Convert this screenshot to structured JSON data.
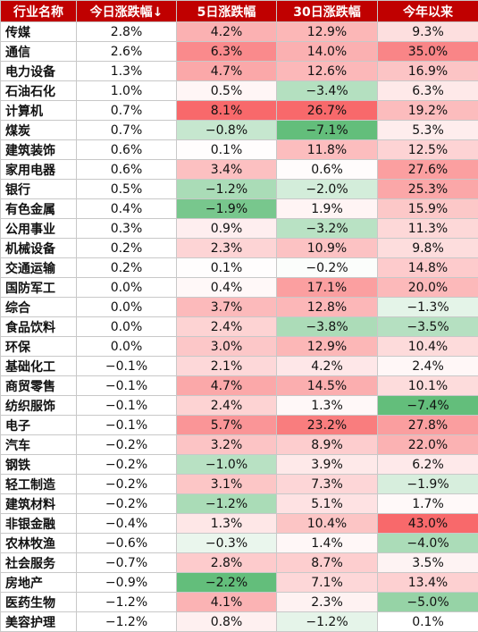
{
  "chart_data": {
    "type": "table",
    "columns": [
      "行业名称",
      "今日涨跌幅↓",
      "5日涨跌幅",
      "30日涨跌幅",
      "今年以来"
    ],
    "rows": [
      {
        "name": "传媒",
        "values": [
          "2.8%",
          "4.2%",
          "12.9%",
          "9.3%"
        ]
      },
      {
        "name": "通信",
        "values": [
          "2.6%",
          "6.3%",
          "14.0%",
          "35.0%"
        ]
      },
      {
        "name": "电力设备",
        "values": [
          "1.3%",
          "4.7%",
          "12.6%",
          "16.9%"
        ]
      },
      {
        "name": "石油石化",
        "values": [
          "1.0%",
          "0.5%",
          "−3.4%",
          "6.3%"
        ]
      },
      {
        "name": "计算机",
        "values": [
          "0.7%",
          "8.1%",
          "26.7%",
          "19.2%"
        ]
      },
      {
        "name": "煤炭",
        "values": [
          "0.7%",
          "−0.8%",
          "−7.1%",
          "5.3%"
        ]
      },
      {
        "name": "建筑装饰",
        "values": [
          "0.6%",
          "0.1%",
          "11.8%",
          "12.5%"
        ]
      },
      {
        "name": "家用电器",
        "values": [
          "0.6%",
          "3.4%",
          "0.6%",
          "27.6%"
        ]
      },
      {
        "name": "银行",
        "values": [
          "0.5%",
          "−1.2%",
          "−2.0%",
          "25.3%"
        ]
      },
      {
        "name": "有色金属",
        "values": [
          "0.4%",
          "−1.9%",
          "1.9%",
          "15.9%"
        ]
      },
      {
        "name": "公用事业",
        "values": [
          "0.3%",
          "0.9%",
          "−3.2%",
          "11.3%"
        ]
      },
      {
        "name": "机械设备",
        "values": [
          "0.2%",
          "2.3%",
          "10.9%",
          "9.8%"
        ]
      },
      {
        "name": "交通运输",
        "values": [
          "0.2%",
          "0.1%",
          "−0.2%",
          "14.8%"
        ]
      },
      {
        "name": "国防军工",
        "values": [
          "0.0%",
          "0.4%",
          "17.1%",
          "20.0%"
        ]
      },
      {
        "name": "综合",
        "values": [
          "0.0%",
          "3.7%",
          "12.8%",
          "−1.3%"
        ]
      },
      {
        "name": "食品饮料",
        "values": [
          "0.0%",
          "2.4%",
          "−3.8%",
          "−3.5%"
        ]
      },
      {
        "name": "环保",
        "values": [
          "0.0%",
          "3.0%",
          "12.9%",
          "10.4%"
        ]
      },
      {
        "name": "基础化工",
        "values": [
          "−0.1%",
          "2.1%",
          "4.2%",
          "2.4%"
        ]
      },
      {
        "name": "商贸零售",
        "values": [
          "−0.1%",
          "4.7%",
          "14.5%",
          "10.1%"
        ]
      },
      {
        "name": "纺织服饰",
        "values": [
          "−0.1%",
          "2.4%",
          "1.3%",
          "−7.4%"
        ]
      },
      {
        "name": "电子",
        "values": [
          "−0.1%",
          "5.7%",
          "23.2%",
          "27.8%"
        ]
      },
      {
        "name": "汽车",
        "values": [
          "−0.2%",
          "3.2%",
          "8.9%",
          "22.0%"
        ]
      },
      {
        "name": "钢铁",
        "values": [
          "−0.2%",
          "−1.0%",
          "3.9%",
          "6.2%"
        ]
      },
      {
        "name": "轻工制造",
        "values": [
          "−0.2%",
          "3.1%",
          "7.3%",
          "−1.9%"
        ]
      },
      {
        "name": "建筑材料",
        "values": [
          "−0.2%",
          "−1.2%",
          "5.1%",
          "1.7%"
        ]
      },
      {
        "name": "非银金融",
        "values": [
          "−0.4%",
          "1.3%",
          "10.4%",
          "43.0%"
        ]
      },
      {
        "name": "农林牧渔",
        "values": [
          "−0.6%",
          "−0.3%",
          "1.4%",
          "−4.0%"
        ]
      },
      {
        "name": "社会服务",
        "values": [
          "−0.7%",
          "2.8%",
          "8.7%",
          "3.5%"
        ]
      },
      {
        "name": "房地产",
        "values": [
          "−0.9%",
          "−2.2%",
          "7.1%",
          "13.4%"
        ]
      },
      {
        "name": "医药生物",
        "values": [
          "−1.2%",
          "4.1%",
          "2.3%",
          "−5.0%"
        ]
      },
      {
        "name": "美容护理",
        "values": [
          "−1.2%",
          "0.8%",
          "−1.2%",
          "0.1%"
        ]
      }
    ],
    "colors": {
      "header_bg": "#c00000",
      "header_text": "#ffffff",
      "positive_max": "#f8696b",
      "negative_max": "#63be7b",
      "neutral": "#ffffff"
    }
  }
}
